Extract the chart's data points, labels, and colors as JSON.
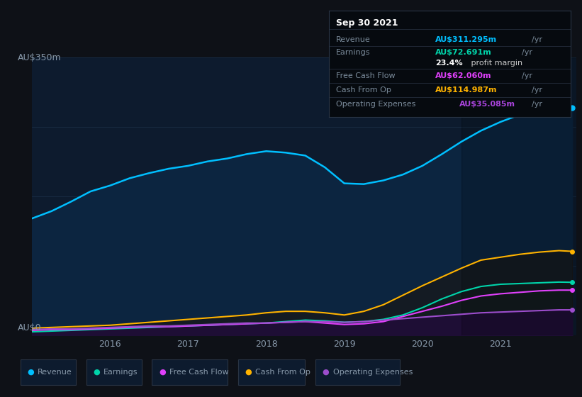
{
  "bg_color": "#0e1117",
  "plot_bg_color": "#0d1b2e",
  "grid_color": "#1a2d45",
  "text_color": "#8899aa",
  "ylabel_top": "AU$350m",
  "ylabel_bottom": "AU$0",
  "ylim": [
    0,
    380
  ],
  "y_gridlines": [
    0,
    95,
    190,
    285,
    380
  ],
  "x_years": [
    2015.0,
    2015.25,
    2015.5,
    2015.75,
    2016.0,
    2016.25,
    2016.5,
    2016.75,
    2017.0,
    2017.25,
    2017.5,
    2017.75,
    2018.0,
    2018.25,
    2018.5,
    2018.75,
    2019.0,
    2019.25,
    2019.5,
    2019.75,
    2020.0,
    2020.25,
    2020.5,
    2020.75,
    2021.0,
    2021.25,
    2021.5,
    2021.75,
    2021.92
  ],
  "revenue": [
    160,
    170,
    183,
    197,
    205,
    215,
    222,
    228,
    232,
    238,
    242,
    248,
    252,
    250,
    246,
    230,
    208,
    207,
    212,
    220,
    232,
    248,
    265,
    280,
    292,
    302,
    308,
    312,
    311
  ],
  "earnings": [
    5,
    6,
    7,
    8,
    9,
    10,
    11,
    12,
    13,
    14,
    15,
    16,
    17,
    19,
    21,
    20,
    18,
    19,
    22,
    28,
    38,
    50,
    60,
    67,
    70,
    71,
    72,
    73,
    72.7
  ],
  "free_cash_flow": [
    7,
    8,
    8,
    9,
    10,
    11,
    12,
    12,
    13,
    14,
    15,
    16,
    17,
    18,
    19,
    17,
    15,
    16,
    19,
    26,
    33,
    40,
    48,
    54,
    57,
    59,
    61,
    62,
    62
  ],
  "cash_from_op": [
    10,
    11,
    12,
    13,
    14,
    16,
    18,
    20,
    22,
    24,
    26,
    28,
    31,
    33,
    33,
    31,
    28,
    33,
    42,
    55,
    68,
    80,
    92,
    103,
    107,
    111,
    114,
    116,
    115
  ],
  "operating_expenses": [
    8,
    9,
    9,
    10,
    11,
    12,
    13,
    13,
    14,
    15,
    16,
    17,
    17,
    18,
    19,
    19,
    18,
    19,
    21,
    23,
    25,
    27,
    29,
    31,
    32,
    33,
    34,
    35,
    35
  ],
  "revenue_color": "#00bfff",
  "revenue_fill": "#0c2540",
  "earnings_color": "#00d4aa",
  "earnings_fill": "#0a2535",
  "free_cash_flow_color": "#e040fb",
  "cash_from_op_color": "#ffb300",
  "cash_from_op_fill": "#1a1510",
  "operating_expenses_color": "#9c4dcc",
  "operating_expenses_fill": "#1e0e35",
  "xtick_years": [
    2016,
    2017,
    2018,
    2019,
    2020,
    2021
  ],
  "legend_items": [
    {
      "label": "Revenue",
      "color": "#00bfff"
    },
    {
      "label": "Earnings",
      "color": "#00d4aa"
    },
    {
      "label": "Free Cash Flow",
      "color": "#e040fb"
    },
    {
      "label": "Cash From Op",
      "color": "#ffb300"
    },
    {
      "label": "Operating Expenses",
      "color": "#9c4dcc"
    }
  ],
  "infobox": {
    "date": "Sep 30 2021",
    "revenue_label": "Revenue",
    "revenue_value": "AU$311.295m",
    "revenue_unit": "/yr",
    "revenue_color": "#00bfff",
    "earnings_label": "Earnings",
    "earnings_value": "AU$72.691m",
    "earnings_unit": "/yr",
    "earnings_color": "#00d4aa",
    "margin_text": "23.4%",
    "margin_label": " profit margin",
    "fcf_label": "Free Cash Flow",
    "fcf_value": "AU$62.060m",
    "fcf_unit": "/yr",
    "fcf_color": "#e040fb",
    "cfo_label": "Cash From Op",
    "cfo_value": "AU$114.987m",
    "cfo_unit": "/yr",
    "cfo_color": "#ffb300",
    "opex_label": "Operating Expenses",
    "opex_value": "AU$35.085m",
    "opex_unit": "/yr",
    "opex_color": "#aa44dd",
    "bg": "#060a0f",
    "border": "#2a3545",
    "text_color": "#7a8a9a",
    "title_color": "#ffffff"
  }
}
